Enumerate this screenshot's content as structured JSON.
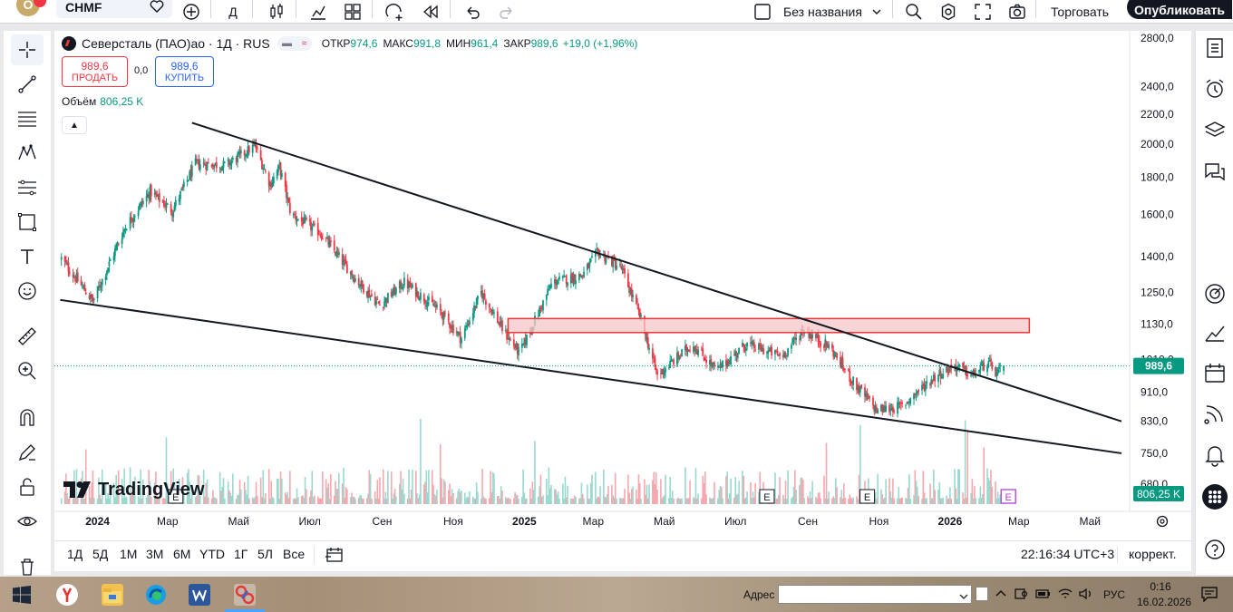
{
  "topbar": {
    "symbol": "CHMF",
    "interval_button": "Д",
    "layout_name": "Без названия",
    "trade_label": "Торговать",
    "publish_label": "Опубликовать",
    "logo_letter": "O"
  },
  "legend": {
    "title": "Северсталь (ПАО)ао · 1Д · RUS",
    "open_label": "ОТКР",
    "open": "974,6",
    "high_label": "МАКС",
    "high": "991,8",
    "low_label": "МИН",
    "low": "961,4",
    "close_label": "ЗАКР",
    "close": "989,6",
    "change": "+19,0 (+1,96%)"
  },
  "trade": {
    "sell_price": "989,6",
    "sell_label": "ПРОДАТЬ",
    "spread": "0,0",
    "buy_price": "989,6",
    "buy_label": "КУПИТЬ"
  },
  "volume_legend": {
    "label": "Объём",
    "value": "806,25 K"
  },
  "watermark": "TradingView",
  "bottom_toolbar": {
    "timeframes": [
      "1Д",
      "5Д",
      "1М",
      "3М",
      "6М",
      "YTD",
      "1Г",
      "5Л",
      "Все"
    ],
    "clock": "22:16:34 UTC+3",
    "adjust": "коррект."
  },
  "taskbar": {
    "address_label": "Адрес",
    "address_value": "",
    "language": "РУС",
    "time": "0:16",
    "date": "16.02.2026"
  },
  "colors": {
    "up": "#089981",
    "down": "#f23645",
    "zone_fill": "#f7c6c9",
    "zone_border": "#e53935"
  },
  "chart_data": {
    "type": "candlestick",
    "symbol": "CHMF",
    "interval": "1D",
    "price_scale": "log",
    "y_ticks": [
      680,
      750,
      830,
      910,
      1010,
      1130,
      1250,
      1400,
      1600,
      1800,
      2000,
      2200,
      2400,
      2800
    ],
    "y_tick_labels": [
      "680,0",
      "750,0",
      "830,0",
      "910,0",
      "1010,0",
      "1130,0",
      "1250,0",
      "1400,0",
      "1600,0",
      "1800,0",
      "2000,0",
      "2200,0",
      "2400,0",
      "2800,0"
    ],
    "x_ticks": [
      "2024",
      "Мар",
      "Май",
      "Июл",
      "Сен",
      "Ноя",
      "2025",
      "Мар",
      "Май",
      "Июл",
      "Сен",
      "Ноя",
      "2026",
      "Мар",
      "Май"
    ],
    "bold_x_ticks": [
      "2024",
      "2025",
      "2026"
    ],
    "earnings_markers": [
      "2024-03",
      "2025-07",
      "2025-10"
    ],
    "ylim": [
      670,
      2900
    ],
    "close_price": 989.6,
    "close_label": "989,6",
    "volume_last_label": "806,25 K",
    "price_path": [
      {
        "t": "2023-12-01",
        "p": 1390
      },
      {
        "t": "2023-12-28",
        "p": 1215
      },
      {
        "t": "2024-01-25",
        "p": 1540
      },
      {
        "t": "2024-02-15",
        "p": 1720
      },
      {
        "t": "2024-03-05",
        "p": 1620
      },
      {
        "t": "2024-03-25",
        "p": 1880
      },
      {
        "t": "2024-04-20",
        "p": 1870
      },
      {
        "t": "2024-05-15",
        "p": 1990
      },
      {
        "t": "2024-05-28",
        "p": 1760
      },
      {
        "t": "2024-06-05",
        "p": 1860
      },
      {
        "t": "2024-06-15",
        "p": 1600
      },
      {
        "t": "2024-07-10",
        "p": 1510
      },
      {
        "t": "2024-08-10",
        "p": 1300
      },
      {
        "t": "2024-08-30",
        "p": 1200
      },
      {
        "t": "2024-09-20",
        "p": 1290
      },
      {
        "t": "2024-10-20",
        "p": 1180
      },
      {
        "t": "2024-11-08",
        "p": 1080
      },
      {
        "t": "2024-11-25",
        "p": 1250
      },
      {
        "t": "2024-12-15",
        "p": 1100
      },
      {
        "t": "2024-12-28",
        "p": 1030
      },
      {
        "t": "2025-01-25",
        "p": 1290
      },
      {
        "t": "2025-02-20",
        "p": 1320
      },
      {
        "t": "2025-03-05",
        "p": 1420
      },
      {
        "t": "2025-03-25",
        "p": 1350
      },
      {
        "t": "2025-04-10",
        "p": 1160
      },
      {
        "t": "2025-04-25",
        "p": 960
      },
      {
        "t": "2025-05-25",
        "p": 1060
      },
      {
        "t": "2025-06-15",
        "p": 975
      },
      {
        "t": "2025-07-10",
        "p": 1060
      },
      {
        "t": "2025-08-10",
        "p": 1020
      },
      {
        "t": "2025-08-28",
        "p": 1110
      },
      {
        "t": "2025-09-20",
        "p": 1050
      },
      {
        "t": "2025-10-10",
        "p": 940
      },
      {
        "t": "2025-10-30",
        "p": 860
      },
      {
        "t": "2025-11-20",
        "p": 870
      },
      {
        "t": "2025-12-20",
        "p": 960
      },
      {
        "t": "2026-01-05",
        "p": 990
      },
      {
        "t": "2026-01-20",
        "p": 960
      },
      {
        "t": "2026-02-02",
        "p": 1000
      },
      {
        "t": "2026-02-10",
        "p": 965
      },
      {
        "t": "2026-02-16",
        "p": 989.6
      }
    ],
    "trendlines": [
      {
        "name": "upper",
        "from": {
          "t": "2024-03-22",
          "p": 2140
        },
        "to": {
          "t": "2026-05-28",
          "p": 830
        }
      },
      {
        "name": "lower",
        "from": {
          "t": "2023-11-30",
          "p": 1220
        },
        "to": {
          "t": "2026-05-28",
          "p": 750
        }
      }
    ],
    "zone": {
      "from_t": "2024-12-18",
      "to_t": "2026-03-10",
      "from_p": 1100,
      "to_p": 1150
    }
  }
}
